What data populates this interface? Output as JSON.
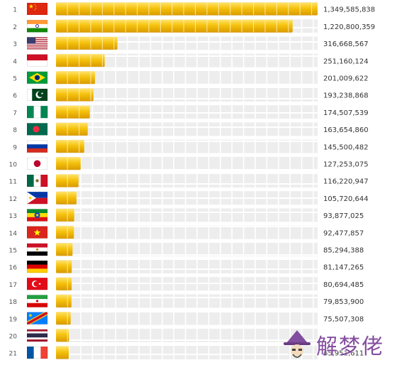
{
  "chart_data": {
    "type": "bar",
    "orientation": "horizontal",
    "xlim": [
      0,
      1349585838
    ],
    "categories": [
      "1",
      "2",
      "3",
      "4",
      "5",
      "6",
      "7",
      "8",
      "9",
      "10",
      "11",
      "12",
      "13",
      "14",
      "15",
      "16",
      "17",
      "18",
      "19",
      "20",
      "21"
    ],
    "flags": [
      "china",
      "india",
      "usa",
      "indonesia",
      "brazil",
      "pakistan",
      "nigeria",
      "bangladesh",
      "russia",
      "japan",
      "mexico",
      "philippines",
      "ethiopia",
      "vietnam",
      "egypt",
      "germany",
      "turkey",
      "iran",
      "dr-congo",
      "thailand",
      "france"
    ],
    "values": [
      1349585838,
      1220800359,
      316668567,
      251160124,
      201009622,
      193238868,
      174507539,
      163654860,
      145500482,
      127253075,
      116220947,
      105720644,
      93877025,
      92477857,
      85294388,
      81147265,
      80694485,
      79853900,
      75507308,
      67448120,
      65951611
    ],
    "value_labels": [
      "1,349,585,838",
      "1,220,800,359",
      "316,668,567",
      "251,160,124",
      "201,009,622",
      "193,238,868",
      "174,507,539",
      "163,654,860",
      "145,500,482",
      "127,253,075",
      "116,220,947",
      "105,720,644",
      "93,877,025",
      "92,477,857",
      "85,294,388",
      "81,147,265",
      "80,694,485",
      "79,853,900",
      "75,507,308",
      "",
      "65,951,611"
    ],
    "bar_color": "#f2b705",
    "track_color": "#ececec",
    "grid": false,
    "legend": "none"
  },
  "watermark": {
    "text": "解梦佬",
    "icon": "fortune-teller-icon",
    "color": "#7a3f99"
  }
}
